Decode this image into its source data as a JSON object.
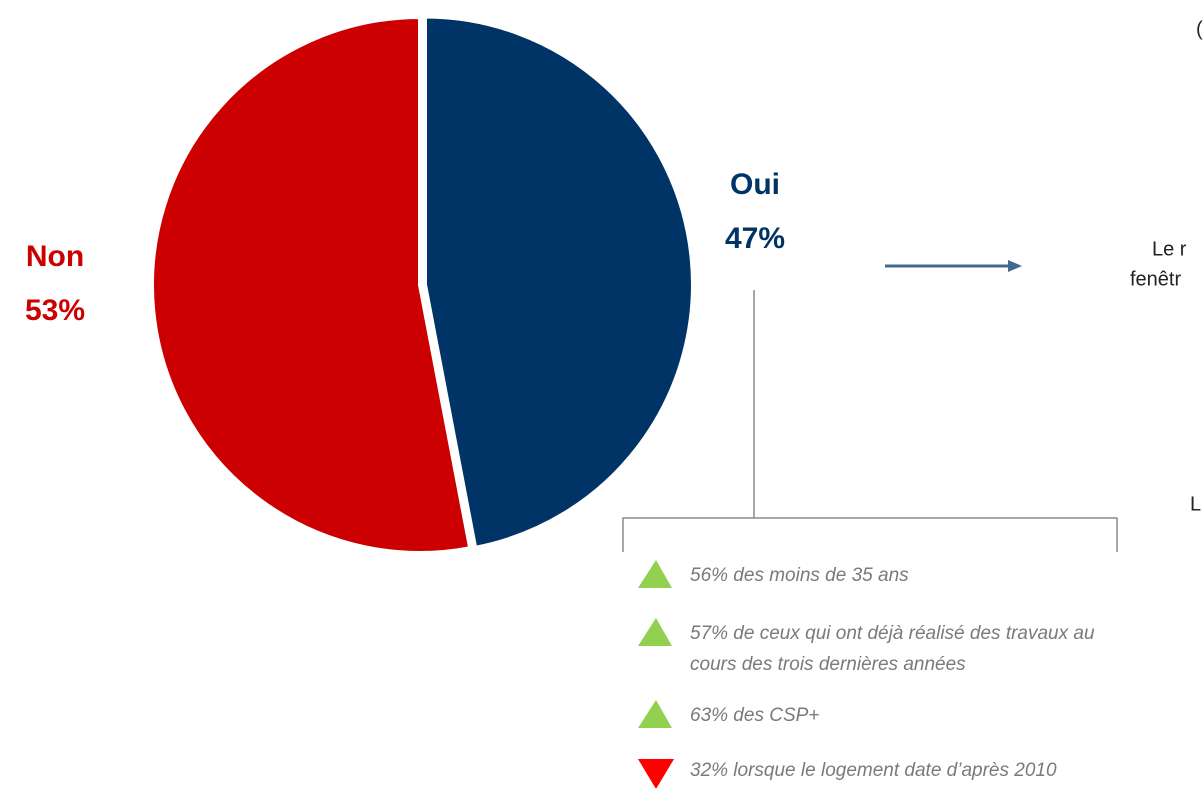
{
  "chart_data": {
    "type": "pie",
    "categories": [
      "Oui",
      "Non"
    ],
    "values": [
      47,
      53
    ],
    "value_labels": [
      "47%",
      "53%"
    ],
    "colors": [
      "#003466",
      "#cc0000"
    ],
    "annotations": [
      {
        "marker": "up",
        "color": "#92d050",
        "lines": [
          "56% des moins de 35 ans"
        ]
      },
      {
        "marker": "up",
        "color": "#92d050",
        "lines": [
          "57% de ceux qui ont déjà réalisé des travaux  au",
          "cours des trois dernières années"
        ]
      },
      {
        "marker": "up",
        "color": "#92d050",
        "lines": [
          " 63% des CSP+"
        ]
      },
      {
        "marker": "down",
        "color": "#ff0000",
        "lines": [
          "32% lorsque  le logement date d’après 2010"
        ]
      }
    ]
  },
  "cropped_text": [
    "(",
    "Le r",
    "fenêtr",
    "L"
  ]
}
